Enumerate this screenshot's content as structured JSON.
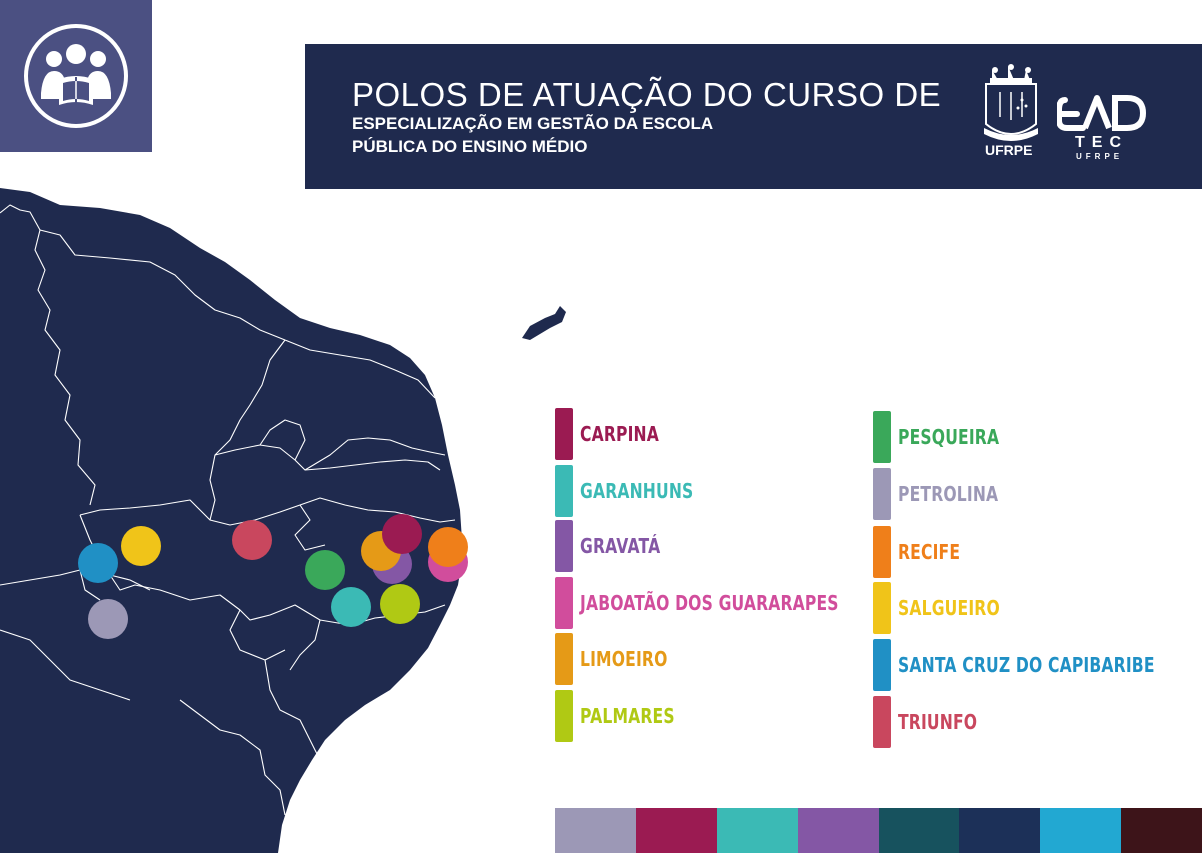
{
  "header": {
    "title_line1": "POLOS DE ATUAÇÃO DO CURSO DE",
    "title_line2": "ESPECIALIZAÇÃO EM GESTÃO DA ESCOLA",
    "title_line3": "PÚBLICA DO ENSINO MÉDIO",
    "ufrpe_label": "UFRPE",
    "ead_tec": "TEC",
    "ead_ufrpe": "UFRPE",
    "logo_icon": "reading-group-icon"
  },
  "legend": [
    {
      "label": "CARPINA",
      "color": "#9b1b52"
    },
    {
      "label": "GARANHUNS",
      "color": "#3bbab5"
    },
    {
      "label": "GRAVATÁ",
      "color": "#8457a5"
    },
    {
      "label": "JABOATÃO DOS GUARARAPES",
      "color": "#d14d9c"
    },
    {
      "label": "LIMOEIRO",
      "color": "#e59a17"
    },
    {
      "label": "PALMARES",
      "color": "#b0c914"
    },
    {
      "label": "PESQUEIRA",
      "color": "#3aa85a"
    },
    {
      "label": "PETROLINA",
      "color": "#9c98b6"
    },
    {
      "label": "RECIFE",
      "color": "#ef7f1a"
    },
    {
      "label": "SALGUEIRO",
      "color": "#f0c419"
    },
    {
      "label": "SANTA CRUZ DO CAPIBARIBE",
      "color": "#2090c5"
    },
    {
      "label": "TRIUNFO",
      "color": "#c9475e"
    }
  ],
  "palette": [
    "#9c98b6",
    "#9b1b52",
    "#3bbab5",
    "#8457a5",
    "#17525e",
    "#1c3058",
    "#22a8d2",
    "#3d1419"
  ],
  "colors": {
    "map_fill": "#1f2a4e",
    "header_bg": "#1f2a4e",
    "logo_bg": "#4b5082"
  }
}
